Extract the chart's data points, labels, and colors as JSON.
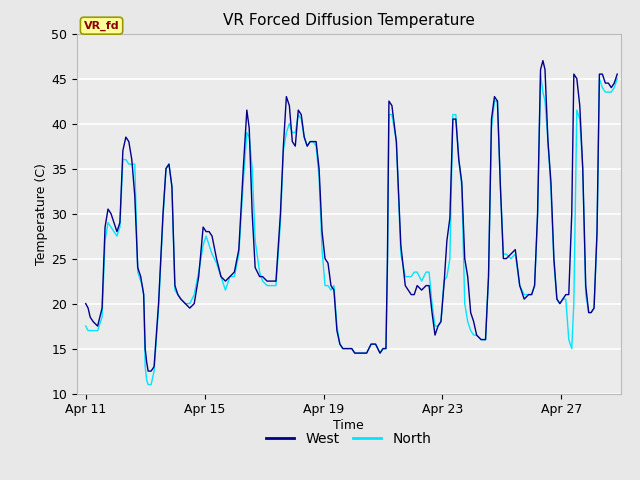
{
  "title": "VR Forced Diffusion Temperature",
  "xlabel": "Time",
  "ylabel": "Temperature (C)",
  "ylim": [
    10,
    50
  ],
  "west_color": "#00008B",
  "north_color": "#00E5FF",
  "figure_bg": "#E8E8E8",
  "plot_bg": "#EBEBEB",
  "label_tag": "VR_fd",
  "label_tag_color": "#8B0000",
  "label_tag_bg": "#FFFF99",
  "label_tag_edge": "#999900",
  "x_ticks_labels": [
    "Apr 11",
    "Apr 15",
    "Apr 19",
    "Apr 23",
    "Apr 27"
  ],
  "x_ticks_pos": [
    0,
    4,
    8,
    12,
    16
  ],
  "y_ticks": [
    10,
    15,
    20,
    25,
    30,
    35,
    40,
    45,
    50
  ],
  "grid_color": "#FFFFFF",
  "west_data": [
    [
      0.0,
      20.0
    ],
    [
      0.08,
      19.5
    ],
    [
      0.15,
      18.5
    ],
    [
      0.25,
      18.0
    ],
    [
      0.4,
      17.5
    ],
    [
      0.55,
      19.5
    ],
    [
      0.65,
      28.5
    ],
    [
      0.75,
      30.5
    ],
    [
      0.85,
      30.0
    ],
    [
      0.95,
      29.0
    ],
    [
      1.05,
      28.0
    ],
    [
      1.15,
      29.0
    ],
    [
      1.25,
      37.0
    ],
    [
      1.35,
      38.5
    ],
    [
      1.45,
      38.0
    ],
    [
      1.55,
      36.0
    ],
    [
      1.65,
      32.0
    ],
    [
      1.75,
      24.0
    ],
    [
      1.85,
      23.0
    ],
    [
      1.9,
      22.0
    ],
    [
      1.95,
      21.0
    ],
    [
      2.0,
      15.0
    ],
    [
      2.05,
      13.5
    ],
    [
      2.1,
      12.5
    ],
    [
      2.2,
      12.5
    ],
    [
      2.3,
      13.0
    ],
    [
      2.45,
      20.0
    ],
    [
      2.6,
      30.0
    ],
    [
      2.7,
      35.0
    ],
    [
      2.8,
      35.5
    ],
    [
      2.9,
      33.0
    ],
    [
      3.0,
      22.0
    ],
    [
      3.1,
      21.0
    ],
    [
      3.2,
      20.5
    ],
    [
      3.35,
      20.0
    ],
    [
      3.5,
      19.5
    ],
    [
      3.65,
      20.0
    ],
    [
      3.8,
      23.0
    ],
    [
      3.95,
      28.5
    ],
    [
      4.05,
      28.0
    ],
    [
      4.15,
      28.0
    ],
    [
      4.25,
      27.5
    ],
    [
      4.4,
      25.0
    ],
    [
      4.55,
      23.0
    ],
    [
      4.7,
      22.5
    ],
    [
      4.85,
      23.0
    ],
    [
      5.0,
      23.5
    ],
    [
      5.15,
      26.0
    ],
    [
      5.3,
      35.0
    ],
    [
      5.42,
      41.5
    ],
    [
      5.5,
      39.5
    ],
    [
      5.6,
      30.0
    ],
    [
      5.7,
      24.0
    ],
    [
      5.85,
      23.0
    ],
    [
      5.95,
      23.0
    ],
    [
      6.1,
      22.5
    ],
    [
      6.25,
      22.5
    ],
    [
      6.4,
      22.5
    ],
    [
      6.55,
      30.0
    ],
    [
      6.65,
      37.5
    ],
    [
      6.75,
      43.0
    ],
    [
      6.85,
      42.0
    ],
    [
      6.95,
      38.0
    ],
    [
      7.05,
      37.5
    ],
    [
      7.15,
      41.5
    ],
    [
      7.25,
      41.0
    ],
    [
      7.35,
      38.5
    ],
    [
      7.45,
      37.5
    ],
    [
      7.55,
      38.0
    ],
    [
      7.65,
      38.0
    ],
    [
      7.75,
      38.0
    ],
    [
      7.85,
      35.0
    ],
    [
      7.95,
      28.0
    ],
    [
      8.05,
      25.0
    ],
    [
      8.15,
      24.5
    ],
    [
      8.25,
      22.0
    ],
    [
      8.35,
      21.5
    ],
    [
      8.45,
      17.0
    ],
    [
      8.55,
      15.5
    ],
    [
      8.65,
      15.0
    ],
    [
      8.75,
      15.0
    ],
    [
      8.85,
      15.0
    ],
    [
      8.95,
      15.0
    ],
    [
      9.05,
      14.5
    ],
    [
      9.15,
      14.5
    ],
    [
      9.3,
      14.5
    ],
    [
      9.45,
      14.5
    ],
    [
      9.6,
      15.5
    ],
    [
      9.75,
      15.5
    ],
    [
      9.9,
      14.5
    ],
    [
      10.0,
      15.0
    ],
    [
      10.1,
      15.0
    ],
    [
      10.15,
      25.0
    ],
    [
      10.2,
      42.5
    ],
    [
      10.3,
      42.0
    ],
    [
      10.45,
      38.0
    ],
    [
      10.6,
      26.5
    ],
    [
      10.75,
      22.0
    ],
    [
      10.85,
      21.5
    ],
    [
      10.95,
      21.0
    ],
    [
      11.05,
      21.0
    ],
    [
      11.15,
      22.0
    ],
    [
      11.3,
      21.5
    ],
    [
      11.45,
      22.0
    ],
    [
      11.55,
      22.0
    ],
    [
      11.65,
      19.0
    ],
    [
      11.75,
      16.5
    ],
    [
      11.85,
      17.5
    ],
    [
      11.95,
      18.0
    ],
    [
      12.05,
      22.0
    ],
    [
      12.15,
      27.0
    ],
    [
      12.25,
      29.5
    ],
    [
      12.35,
      40.5
    ],
    [
      12.45,
      40.5
    ],
    [
      12.55,
      36.0
    ],
    [
      12.65,
      33.5
    ],
    [
      12.75,
      25.0
    ],
    [
      12.85,
      23.0
    ],
    [
      12.95,
      19.0
    ],
    [
      13.05,
      18.0
    ],
    [
      13.15,
      16.5
    ],
    [
      13.3,
      16.0
    ],
    [
      13.45,
      16.0
    ],
    [
      13.55,
      23.0
    ],
    [
      13.65,
      40.5
    ],
    [
      13.75,
      43.0
    ],
    [
      13.85,
      42.5
    ],
    [
      13.95,
      33.0
    ],
    [
      14.05,
      25.0
    ],
    [
      14.15,
      25.0
    ],
    [
      14.3,
      25.5
    ],
    [
      14.45,
      26.0
    ],
    [
      14.6,
      22.0
    ],
    [
      14.75,
      20.5
    ],
    [
      14.9,
      21.0
    ],
    [
      15.0,
      21.0
    ],
    [
      15.1,
      22.0
    ],
    [
      15.2,
      30.0
    ],
    [
      15.3,
      46.0
    ],
    [
      15.38,
      47.0
    ],
    [
      15.45,
      46.0
    ],
    [
      15.55,
      38.0
    ],
    [
      15.65,
      33.5
    ],
    [
      15.75,
      25.0
    ],
    [
      15.85,
      20.5
    ],
    [
      15.95,
      20.0
    ],
    [
      16.05,
      20.5
    ],
    [
      16.15,
      21.0
    ],
    [
      16.25,
      21.0
    ],
    [
      16.35,
      30.0
    ],
    [
      16.42,
      45.5
    ],
    [
      16.52,
      45.0
    ],
    [
      16.62,
      42.0
    ],
    [
      16.72,
      35.0
    ],
    [
      16.82,
      22.0
    ],
    [
      16.92,
      19.0
    ],
    [
      17.0,
      19.0
    ],
    [
      17.1,
      19.5
    ],
    [
      17.2,
      28.0
    ],
    [
      17.28,
      45.5
    ],
    [
      17.38,
      45.5
    ],
    [
      17.48,
      44.5
    ],
    [
      17.58,
      44.5
    ],
    [
      17.68,
      44.0
    ],
    [
      17.78,
      44.5
    ],
    [
      17.88,
      45.5
    ]
  ],
  "north_data": [
    [
      0.0,
      17.5
    ],
    [
      0.08,
      17.0
    ],
    [
      0.15,
      17.0
    ],
    [
      0.25,
      17.0
    ],
    [
      0.4,
      17.0
    ],
    [
      0.55,
      18.5
    ],
    [
      0.65,
      27.0
    ],
    [
      0.75,
      29.0
    ],
    [
      0.85,
      28.5
    ],
    [
      0.95,
      28.0
    ],
    [
      1.05,
      27.5
    ],
    [
      1.15,
      28.5
    ],
    [
      1.25,
      36.0
    ],
    [
      1.35,
      36.0
    ],
    [
      1.45,
      35.5
    ],
    [
      1.55,
      35.5
    ],
    [
      1.65,
      35.5
    ],
    [
      1.75,
      23.5
    ],
    [
      1.85,
      22.5
    ],
    [
      1.9,
      22.0
    ],
    [
      1.95,
      21.0
    ],
    [
      2.0,
      13.0
    ],
    [
      2.05,
      11.5
    ],
    [
      2.1,
      11.0
    ],
    [
      2.2,
      11.0
    ],
    [
      2.3,
      12.5
    ],
    [
      2.45,
      19.5
    ],
    [
      2.6,
      29.5
    ],
    [
      2.7,
      35.0
    ],
    [
      2.8,
      35.5
    ],
    [
      2.9,
      33.0
    ],
    [
      3.0,
      21.5
    ],
    [
      3.1,
      21.0
    ],
    [
      3.2,
      20.5
    ],
    [
      3.35,
      20.0
    ],
    [
      3.5,
      20.0
    ],
    [
      3.65,
      21.0
    ],
    [
      3.8,
      23.5
    ],
    [
      3.95,
      26.5
    ],
    [
      4.05,
      27.5
    ],
    [
      4.15,
      26.5
    ],
    [
      4.25,
      25.5
    ],
    [
      4.4,
      24.5
    ],
    [
      4.55,
      23.0
    ],
    [
      4.7,
      21.5
    ],
    [
      4.85,
      23.0
    ],
    [
      5.0,
      23.0
    ],
    [
      5.15,
      25.5
    ],
    [
      5.3,
      33.5
    ],
    [
      5.42,
      39.0
    ],
    [
      5.5,
      38.5
    ],
    [
      5.6,
      35.0
    ],
    [
      5.7,
      27.0
    ],
    [
      5.85,
      23.5
    ],
    [
      5.95,
      22.5
    ],
    [
      6.1,
      22.0
    ],
    [
      6.25,
      22.0
    ],
    [
      6.4,
      22.0
    ],
    [
      6.55,
      29.0
    ],
    [
      6.65,
      37.0
    ],
    [
      6.75,
      39.0
    ],
    [
      6.85,
      40.0
    ],
    [
      6.95,
      39.0
    ],
    [
      7.05,
      39.0
    ],
    [
      7.15,
      41.0
    ],
    [
      7.25,
      40.5
    ],
    [
      7.35,
      38.5
    ],
    [
      7.45,
      37.5
    ],
    [
      7.55,
      38.0
    ],
    [
      7.65,
      38.0
    ],
    [
      7.75,
      37.5
    ],
    [
      7.85,
      34.0
    ],
    [
      7.95,
      26.0
    ],
    [
      8.05,
      22.0
    ],
    [
      8.15,
      22.0
    ],
    [
      8.25,
      21.5
    ],
    [
      8.35,
      22.0
    ],
    [
      8.45,
      17.5
    ],
    [
      8.55,
      15.5
    ],
    [
      8.65,
      15.0
    ],
    [
      8.75,
      15.0
    ],
    [
      8.85,
      15.0
    ],
    [
      8.95,
      15.0
    ],
    [
      9.05,
      14.5
    ],
    [
      9.15,
      14.5
    ],
    [
      9.3,
      14.5
    ],
    [
      9.45,
      14.5
    ],
    [
      9.6,
      15.5
    ],
    [
      9.75,
      15.5
    ],
    [
      9.9,
      14.5
    ],
    [
      10.0,
      15.0
    ],
    [
      10.1,
      15.0
    ],
    [
      10.15,
      24.0
    ],
    [
      10.2,
      41.0
    ],
    [
      10.3,
      41.0
    ],
    [
      10.45,
      38.0
    ],
    [
      10.6,
      25.5
    ],
    [
      10.75,
      23.0
    ],
    [
      10.85,
      23.0
    ],
    [
      10.95,
      23.0
    ],
    [
      11.05,
      23.5
    ],
    [
      11.15,
      23.5
    ],
    [
      11.3,
      22.5
    ],
    [
      11.45,
      23.5
    ],
    [
      11.55,
      23.5
    ],
    [
      11.65,
      20.0
    ],
    [
      11.75,
      17.5
    ],
    [
      11.85,
      17.5
    ],
    [
      11.95,
      18.0
    ],
    [
      12.05,
      22.5
    ],
    [
      12.15,
      23.0
    ],
    [
      12.25,
      25.0
    ],
    [
      12.35,
      41.0
    ],
    [
      12.45,
      41.0
    ],
    [
      12.55,
      36.0
    ],
    [
      12.65,
      33.0
    ],
    [
      12.75,
      20.0
    ],
    [
      12.85,
      18.0
    ],
    [
      12.95,
      17.0
    ],
    [
      13.05,
      16.5
    ],
    [
      13.15,
      16.5
    ],
    [
      13.3,
      16.0
    ],
    [
      13.45,
      16.0
    ],
    [
      13.55,
      23.0
    ],
    [
      13.65,
      39.5
    ],
    [
      13.75,
      42.5
    ],
    [
      13.85,
      42.5
    ],
    [
      13.95,
      33.0
    ],
    [
      14.05,
      25.5
    ],
    [
      14.15,
      25.5
    ],
    [
      14.3,
      25.0
    ],
    [
      14.45,
      25.5
    ],
    [
      14.6,
      22.0
    ],
    [
      14.75,
      21.0
    ],
    [
      14.9,
      21.0
    ],
    [
      15.0,
      21.0
    ],
    [
      15.1,
      22.0
    ],
    [
      15.2,
      29.5
    ],
    [
      15.3,
      45.5
    ],
    [
      15.38,
      43.5
    ],
    [
      15.45,
      42.5
    ],
    [
      15.55,
      38.0
    ],
    [
      15.65,
      32.5
    ],
    [
      15.75,
      24.5
    ],
    [
      15.85,
      20.5
    ],
    [
      15.95,
      20.0
    ],
    [
      16.05,
      20.5
    ],
    [
      16.15,
      20.5
    ],
    [
      16.25,
      16.0
    ],
    [
      16.35,
      15.0
    ],
    [
      16.42,
      20.0
    ],
    [
      16.52,
      41.5
    ],
    [
      16.62,
      40.5
    ],
    [
      16.72,
      35.0
    ],
    [
      16.82,
      21.0
    ],
    [
      16.92,
      19.0
    ],
    [
      17.0,
      19.0
    ],
    [
      17.1,
      19.5
    ],
    [
      17.2,
      27.5
    ],
    [
      17.28,
      45.0
    ],
    [
      17.38,
      44.0
    ],
    [
      17.48,
      43.5
    ],
    [
      17.58,
      43.5
    ],
    [
      17.68,
      43.5
    ],
    [
      17.78,
      44.0
    ],
    [
      17.88,
      45.0
    ]
  ]
}
